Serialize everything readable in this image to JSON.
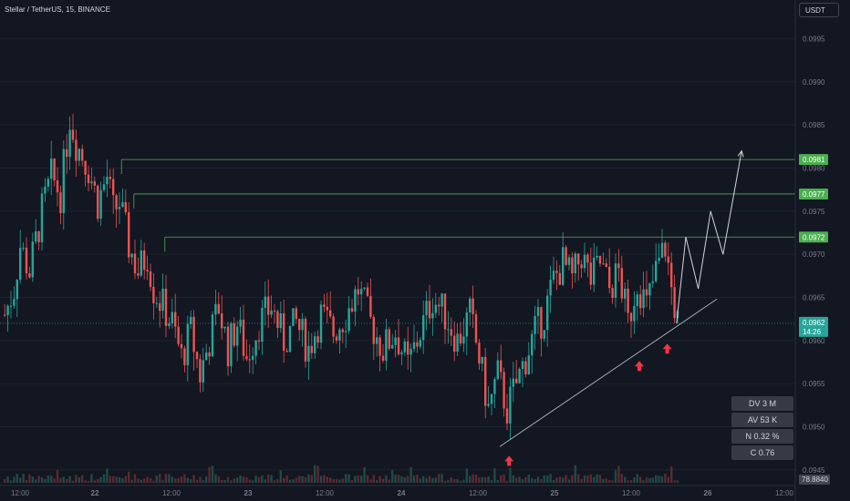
{
  "header": {
    "title": "Stellar / TetherUS, 15, BINANCE",
    "currency": "USDT"
  },
  "colors": {
    "bg": "#131722",
    "up": "#26a69a",
    "down": "#ef5350",
    "level": "#4caf50",
    "arrow": "#f23645",
    "text": "#d1d4dc",
    "axis": "#787b86"
  },
  "stats": [
    {
      "label": "DV",
      "value": "3 M"
    },
    {
      "label": "AV",
      "value": "53 K"
    },
    {
      "label": "N",
      "value": "0.32 %"
    },
    {
      "label": "C",
      "value": "0.76"
    }
  ],
  "chart_data": {
    "type": "candlestick",
    "title": "Stellar / TetherUS, 15, BINANCE",
    "ylim": [
      0.09435,
      0.09995
    ],
    "y_ticks": [
      "0.0995",
      "0.0990",
      "0.0985",
      "0.0980",
      "0.0975",
      "0.0970",
      "0.0965",
      "0.0960",
      "0.0955",
      "0.0950",
      "0.0945"
    ],
    "x_ticks": [
      "12:00",
      "22",
      "12:00",
      "23",
      "12:00",
      "24",
      "12:00",
      "25",
      "12:00",
      "26",
      "12:00"
    ],
    "price_series": [
      {
        "t": 0,
        "p": 0.0963
      },
      {
        "t": 3,
        "p": 0.0966
      },
      {
        "t": 5,
        "p": 0.0971
      },
      {
        "t": 8,
        "p": 0.0968
      },
      {
        "t": 12,
        "p": 0.0975
      },
      {
        "t": 15,
        "p": 0.0979
      },
      {
        "t": 18,
        "p": 0.0977
      },
      {
        "t": 21,
        "p": 0.0986
      },
      {
        "t": 23,
        "p": 0.0983
      },
      {
        "t": 27,
        "p": 0.098
      },
      {
        "t": 30,
        "p": 0.0976
      },
      {
        "t": 33,
        "p": 0.0979
      },
      {
        "t": 35,
        "p": 0.0975
      },
      {
        "t": 37,
        "p": 0.0976
      },
      {
        "t": 40,
        "p": 0.0971
      },
      {
        "t": 43,
        "p": 0.0968
      },
      {
        "t": 46,
        "p": 0.097
      },
      {
        "t": 48,
        "p": 0.0966
      },
      {
        "t": 51,
        "p": 0.0964
      },
      {
        "t": 54,
        "p": 0.0962
      },
      {
        "t": 57,
        "p": 0.0958
      },
      {
        "t": 60,
        "p": 0.0961
      },
      {
        "t": 63,
        "p": 0.0956
      },
      {
        "t": 66,
        "p": 0.096
      },
      {
        "t": 69,
        "p": 0.0964
      },
      {
        "t": 72,
        "p": 0.0959
      },
      {
        "t": 75,
        "p": 0.0962
      },
      {
        "t": 78,
        "p": 0.0958
      },
      {
        "t": 82,
        "p": 0.0962
      },
      {
        "t": 86,
        "p": 0.0964
      },
      {
        "t": 90,
        "p": 0.096
      },
      {
        "t": 94,
        "p": 0.0962
      },
      {
        "t": 98,
        "p": 0.0959
      },
      {
        "t": 102,
        "p": 0.0963
      },
      {
        "t": 106,
        "p": 0.0961
      },
      {
        "t": 110,
        "p": 0.0963
      },
      {
        "t": 114,
        "p": 0.0966
      },
      {
        "t": 118,
        "p": 0.0962
      },
      {
        "t": 122,
        "p": 0.0959
      },
      {
        "t": 126,
        "p": 0.0961
      },
      {
        "t": 130,
        "p": 0.0957
      },
      {
        "t": 134,
        "p": 0.0961
      },
      {
        "t": 138,
        "p": 0.0965
      },
      {
        "t": 142,
        "p": 0.0963
      },
      {
        "t": 146,
        "p": 0.096
      },
      {
        "t": 150,
        "p": 0.0963
      },
      {
        "t": 153,
        "p": 0.0958
      },
      {
        "t": 156,
        "p": 0.0952
      },
      {
        "t": 159,
        "p": 0.0956
      },
      {
        "t": 162,
        "p": 0.0952
      },
      {
        "t": 165,
        "p": 0.0955
      },
      {
        "t": 168,
        "p": 0.0958
      },
      {
        "t": 171,
        "p": 0.0961
      },
      {
        "t": 174,
        "p": 0.0963
      },
      {
        "t": 177,
        "p": 0.0967
      },
      {
        "t": 180,
        "p": 0.0969
      },
      {
        "t": 183,
        "p": 0.0967
      },
      {
        "t": 186,
        "p": 0.097
      },
      {
        "t": 189,
        "p": 0.0967
      },
      {
        "t": 192,
        "p": 0.0969
      },
      {
        "t": 195,
        "p": 0.0966
      },
      {
        "t": 198,
        "p": 0.0968
      },
      {
        "t": 201,
        "p": 0.0962
      },
      {
        "t": 204,
        "p": 0.0967
      },
      {
        "t": 207,
        "p": 0.0964
      },
      {
        "t": 210,
        "p": 0.0968
      },
      {
        "t": 213,
        "p": 0.0971
      },
      {
        "t": 215,
        "p": 0.0966
      },
      {
        "t": 217,
        "p": 0.0962
      }
    ],
    "volume_last": "78.8840",
    "levels": [
      {
        "value": 0.0981,
        "label": "0.0981",
        "start_t": 38
      },
      {
        "value": 0.0977,
        "label": "0.0977",
        "start_t": 42
      },
      {
        "value": 0.0972,
        "label": "0.0972",
        "start_t": 52
      }
    ],
    "current_price": {
      "value": 0.0962,
      "label": "0.0962",
      "countdown": "14:26"
    },
    "trendline": [
      {
        "t": 160,
        "p": 0.09477
      },
      {
        "t": 230,
        "p": 0.09648
      }
    ],
    "projection": [
      {
        "t": 217,
        "p": 0.0962
      },
      {
        "t": 220,
        "p": 0.0972
      },
      {
        "t": 224,
        "p": 0.0966
      },
      {
        "t": 228,
        "p": 0.0975
      },
      {
        "t": 232,
        "p": 0.097
      },
      {
        "t": 238,
        "p": 0.0982
      }
    ],
    "arrows": [
      {
        "t": 163,
        "p": 0.0946
      },
      {
        "t": 205,
        "p": 0.0957
      },
      {
        "t": 214,
        "p": 0.0959
      }
    ]
  }
}
